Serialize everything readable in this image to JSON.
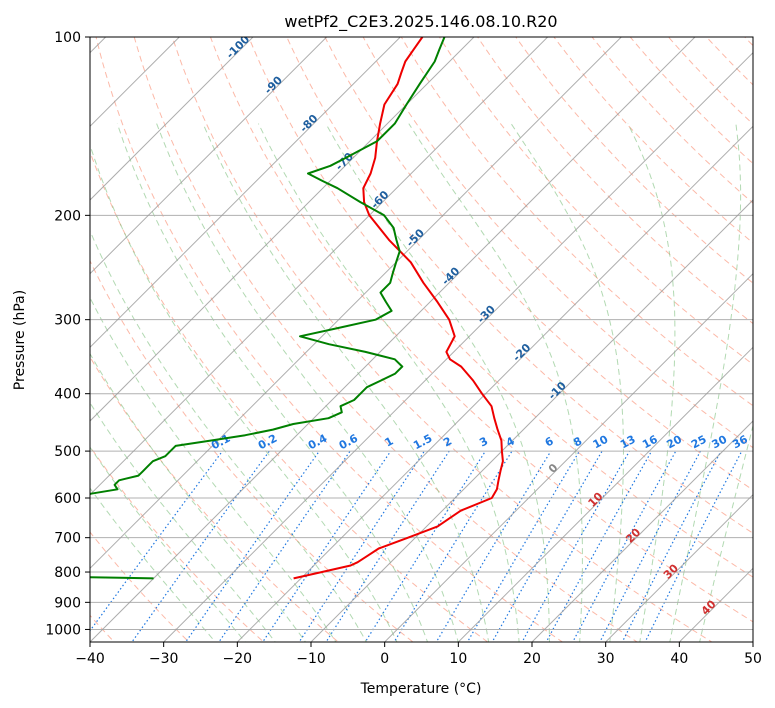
{
  "chart_data": {
    "type": "line",
    "subtype": "skew-t log-p diagram",
    "title": "wetPf2_C2E3.2025.146.08.10.R20",
    "xlabel": "Temperature (°C)",
    "ylabel": "Pressure (hPa)",
    "xlim": [
      -40,
      50
    ],
    "ylim": [
      1050,
      100
    ],
    "y_scale": "log",
    "x_ticks": [
      "−40",
      "−30",
      "−20",
      "−10",
      "0",
      "10",
      "20",
      "30",
      "40",
      "50"
    ],
    "y_ticks": [
      "100",
      "200",
      "300",
      "400",
      "500",
      "600",
      "700",
      "800",
      "900",
      "1000"
    ],
    "grid": true,
    "colors": {
      "temperature": "#ee0000",
      "dewpoint": "#008000",
      "isotherm": "#999999",
      "dry_adiabat": "#fa8060",
      "moist_adiabat": "#7fbf7f",
      "mixing_ratio": "#1f77e0",
      "temp_label": "#1f5f9f"
    },
    "isotherm_labels": [
      "-100",
      "-90",
      "-80",
      "-70",
      "-60",
      "-50",
      "-40",
      "-30",
      "-20",
      "-10"
    ],
    "isotherm_label_values": [
      -100,
      -90,
      -80,
      -70,
      -60,
      -50,
      -40,
      -30,
      -20,
      -10
    ],
    "freezing_label": "0",
    "warm_labels": [
      "10",
      "20",
      "30",
      "40"
    ],
    "warm_label_values": [
      10,
      20,
      30,
      40
    ],
    "mixing_ratio_labels": [
      "0.1",
      "0.2",
      "0.4",
      "0.6",
      "1",
      "1.5",
      "2",
      "3",
      "4",
      "6",
      "8",
      "10",
      "13",
      "16",
      "20",
      "25",
      "30",
      "36"
    ],
    "mixing_ratio_values": [
      0.1,
      0.2,
      0.4,
      0.6,
      1,
      1.5,
      2,
      3,
      4,
      6,
      8,
      10,
      13,
      16,
      20,
      25,
      30,
      36
    ],
    "series": [
      {
        "key": "temperature",
        "pressure": [
          820,
          800,
          780,
          770,
          750,
          730,
          700,
          670,
          650,
          630,
          600,
          580,
          560,
          540,
          520,
          500,
          480,
          460,
          440,
          420,
          400,
          380,
          360,
          350,
          340,
          320,
          300,
          280,
          260,
          240,
          220,
          200,
          190,
          180,
          170,
          160,
          150,
          140,
          130,
          120,
          115,
          110,
          105,
          100
        ],
        "temperature": [
          -21,
          -18,
          -15,
          -14.5,
          -14,
          -13.5,
          -11,
          -8.5,
          -8,
          -7.5,
          -5,
          -5.5,
          -6.5,
          -7.5,
          -8.5,
          -10,
          -11.5,
          -13.5,
          -15.5,
          -17.5,
          -20.5,
          -23.5,
          -27,
          -29.5,
          -31,
          -32,
          -35,
          -39,
          -43.5,
          -48,
          -54,
          -60,
          -62.5,
          -64.5,
          -65.5,
          -67,
          -69,
          -71,
          -73,
          -74,
          -75,
          -76,
          -76.5,
          -77
        ]
      },
      {
        "key": "dewpoint",
        "pressure": [
          820,
          815,
          810,
          805,
          800,
          795,
          790,
          780,
          770,
          760,
          750,
          740,
          730,
          720,
          710,
          700,
          690,
          680,
          670,
          660,
          650,
          640,
          630,
          620,
          610,
          600,
          590,
          580,
          570,
          560,
          550,
          540,
          530,
          520,
          510,
          500,
          490,
          480,
          470,
          460,
          450,
          440,
          430,
          420,
          410,
          400,
          390,
          380,
          370,
          360,
          350,
          340,
          330,
          320,
          310,
          300,
          290,
          280,
          270,
          260,
          250,
          240,
          230,
          220,
          210,
          200,
          190,
          180,
          175,
          170,
          165,
          160,
          150,
          140,
          130,
          120,
          110,
          105,
          100
        ],
        "dewpoint": [
          -40,
          -52,
          -65,
          -78,
          -82,
          -68,
          -55,
          -55,
          -55,
          -54,
          -64,
          -64,
          -66,
          -70,
          -65,
          -60,
          -64,
          -66,
          -64,
          -60,
          -60,
          -61,
          -65,
          -64,
          -60,
          -61,
          -60,
          -57,
          -58,
          -58,
          -56,
          -56,
          -56,
          -56,
          -55,
          -55,
          -55,
          -51,
          -47,
          -44,
          -42,
          -38,
          -37,
          -38,
          -37,
          -37,
          -37,
          -36,
          -35,
          -35,
          -37,
          -42,
          -48,
          -53,
          -49,
          -45,
          -44,
          -46,
          -48,
          -48,
          -49,
          -50,
          -51,
          -53,
          -55,
          -58,
          -63,
          -68,
          -71,
          -74,
          -72,
          -71,
          -69,
          -69,
          -70,
          -71,
          -72,
          -73,
          -74
        ]
      }
    ]
  }
}
